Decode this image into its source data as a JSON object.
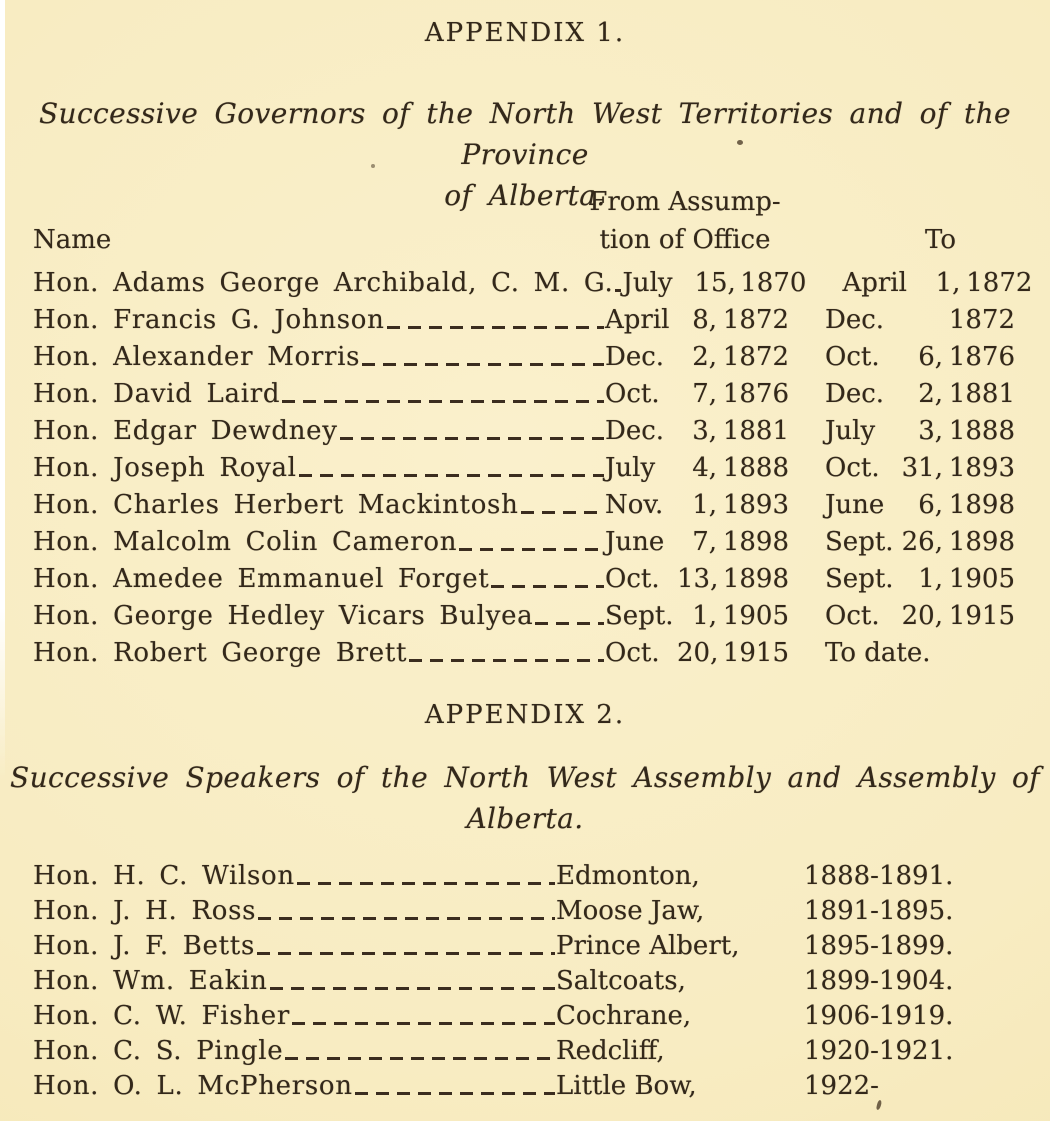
{
  "colors": {
    "paper": "#f8ecc2",
    "ink": "#33281a"
  },
  "appendix1": {
    "heading": "APPENDIX 1.",
    "title_line1": "Successive Governors of the North West Territories and of the Province",
    "title_line2": "of Alberta.",
    "header": {
      "name": "Name",
      "from_line1": "From Assump-",
      "from_line2": "tion of Office",
      "to": "To"
    },
    "rows": [
      {
        "name": "Hon. Adams George Archibald, C. M. G.",
        "from_month": "July",
        "from_day": "15,",
        "from_year": "1870",
        "to_month": "April",
        "to_day": "1,",
        "to_year": "1872"
      },
      {
        "name": "Hon. Francis G. Johnson",
        "from_month": "April",
        "from_day": "8,",
        "from_year": "1872",
        "to_month": "Dec.",
        "to_day": "",
        "to_year": "1872"
      },
      {
        "name": "Hon. Alexander Morris",
        "from_month": "Dec.",
        "from_day": "2,",
        "from_year": "1872",
        "to_month": "Oct.",
        "to_day": "6,",
        "to_year": "1876"
      },
      {
        "name": "Hon. David Laird",
        "from_month": "Oct.",
        "from_day": "7,",
        "from_year": "1876",
        "to_month": "Dec.",
        "to_day": "2,",
        "to_year": "1881"
      },
      {
        "name": "Hon. Edgar Dewdney",
        "from_month": "Dec.",
        "from_day": "3,",
        "from_year": "1881",
        "to_month": "July",
        "to_day": "3,",
        "to_year": "1888"
      },
      {
        "name": "Hon. Joseph Royal",
        "from_month": "July",
        "from_day": "4,",
        "from_year": "1888",
        "to_month": "Oct.",
        "to_day": "31,",
        "to_year": "1893"
      },
      {
        "name": "Hon. Charles Herbert Mackintosh",
        "from_month": "Nov.",
        "from_day": "1,",
        "from_year": "1893",
        "to_month": "June",
        "to_day": "6,",
        "to_year": "1898"
      },
      {
        "name": "Hon. Malcolm Colin Cameron",
        "from_month": "June",
        "from_day": "7,",
        "from_year": "1898",
        "to_month": "Sept.",
        "to_day": "26,",
        "to_year": "1898"
      },
      {
        "name": "Hon. Amedee Emmanuel Forget",
        "from_month": "Oct.",
        "from_day": "13,",
        "from_year": "1898",
        "to_month": "Sept.",
        "to_day": "1,",
        "to_year": "1905"
      },
      {
        "name": "Hon. George Hedley Vicars Bulyea",
        "from_month": "Sept.",
        "from_day": "1,",
        "from_year": "1905",
        "to_month": "Oct.",
        "to_day": "20,",
        "to_year": "1915"
      },
      {
        "name": "Hon. Robert George Brett",
        "from_month": "Oct.",
        "from_day": "20,",
        "from_year": "1915",
        "to_text": "To date."
      }
    ]
  },
  "appendix2": {
    "heading": "APPENDIX 2.",
    "title_line1": "Successive Speakers of the North West Assembly and Assembly of",
    "title_line2": "Alberta.",
    "rows": [
      {
        "name": "Hon. H. C. Wilson",
        "place": "Edmonton,",
        "years": "1888-1891."
      },
      {
        "name": "Hon. J. H. Ross",
        "place": "Moose Jaw,",
        "years": "1891-1895."
      },
      {
        "name": "Hon. J. F. Betts",
        "place": "Prince Albert,",
        "years": "1895-1899."
      },
      {
        "name": "Hon. Wm. Eakin",
        "place": "Saltcoats,",
        "years": "1899-1904."
      },
      {
        "name": "Hon. C. W. Fisher",
        "place": "Cochrane,",
        "years": "1906-1919."
      },
      {
        "name": "Hon. C. S. Pingle",
        "place": "Redcliff,",
        "years": "1920-1921."
      },
      {
        "name": "Hon. O. L. McPherson",
        "place": "Little Bow,",
        "years": "1922-"
      }
    ]
  }
}
